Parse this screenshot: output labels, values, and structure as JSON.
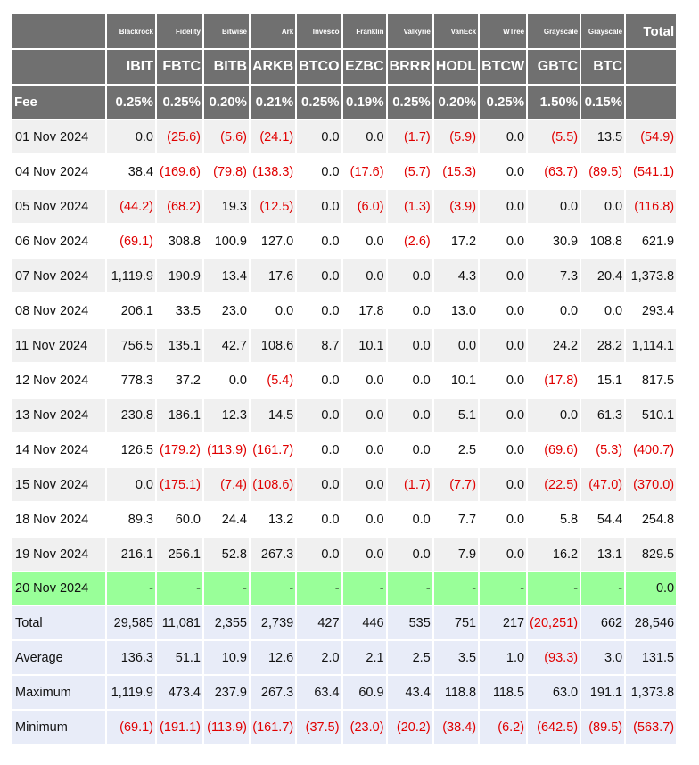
{
  "header": {
    "issuers": [
      "Blackrock",
      "Fidelity",
      "Bitwise",
      "Ark",
      "Invesco",
      "Franklin",
      "Valkyrie",
      "VanEck",
      "WTree",
      "Grayscale",
      "Grayscale"
    ],
    "total_label": "Total",
    "tickers": [
      "IBIT",
      "FBTC",
      "BITB",
      "ARKB",
      "BTCO",
      "EZBC",
      "BRRR",
      "HODL",
      "BTCW",
      "GBTC",
      "BTC"
    ],
    "fee_label": "Fee",
    "fees": [
      "0.25%",
      "0.25%",
      "0.20%",
      "0.21%",
      "0.25%",
      "0.19%",
      "0.25%",
      "0.20%",
      "0.25%",
      "1.50%",
      "0.15%"
    ]
  },
  "rows": [
    {
      "date": "01 Nov 2024",
      "values": [
        "0.0",
        "(25.6)",
        "(5.6)",
        "(24.1)",
        "0.0",
        "0.0",
        "(1.7)",
        "(5.9)",
        "0.0",
        "(5.5)",
        "13.5",
        "(54.9)"
      ]
    },
    {
      "date": "04 Nov 2024",
      "values": [
        "38.4",
        "(169.6)",
        "(79.8)",
        "(138.3)",
        "0.0",
        "(17.6)",
        "(5.7)",
        "(15.3)",
        "0.0",
        "(63.7)",
        "(89.5)",
        "(541.1)"
      ]
    },
    {
      "date": "05 Nov 2024",
      "values": [
        "(44.2)",
        "(68.2)",
        "19.3",
        "(12.5)",
        "0.0",
        "(6.0)",
        "(1.3)",
        "(3.9)",
        "0.0",
        "0.0",
        "0.0",
        "(116.8)"
      ]
    },
    {
      "date": "06 Nov 2024",
      "values": [
        "(69.1)",
        "308.8",
        "100.9",
        "127.0",
        "0.0",
        "0.0",
        "(2.6)",
        "17.2",
        "0.0",
        "30.9",
        "108.8",
        "621.9"
      ]
    },
    {
      "date": "07 Nov 2024",
      "values": [
        "1,119.9",
        "190.9",
        "13.4",
        "17.6",
        "0.0",
        "0.0",
        "0.0",
        "4.3",
        "0.0",
        "7.3",
        "20.4",
        "1,373.8"
      ]
    },
    {
      "date": "08 Nov 2024",
      "values": [
        "206.1",
        "33.5",
        "23.0",
        "0.0",
        "0.0",
        "17.8",
        "0.0",
        "13.0",
        "0.0",
        "0.0",
        "0.0",
        "293.4"
      ]
    },
    {
      "date": "11 Nov 2024",
      "values": [
        "756.5",
        "135.1",
        "42.7",
        "108.6",
        "8.7",
        "10.1",
        "0.0",
        "0.0",
        "0.0",
        "24.2",
        "28.2",
        "1,114.1"
      ]
    },
    {
      "date": "12 Nov 2024",
      "values": [
        "778.3",
        "37.2",
        "0.0",
        "(5.4)",
        "0.0",
        "0.0",
        "0.0",
        "10.1",
        "0.0",
        "(17.8)",
        "15.1",
        "817.5"
      ]
    },
    {
      "date": "13 Nov 2024",
      "values": [
        "230.8",
        "186.1",
        "12.3",
        "14.5",
        "0.0",
        "0.0",
        "0.0",
        "5.1",
        "0.0",
        "0.0",
        "61.3",
        "510.1"
      ]
    },
    {
      "date": "14 Nov 2024",
      "values": [
        "126.5",
        "(179.2)",
        "(113.9)",
        "(161.7)",
        "0.0",
        "0.0",
        "0.0",
        "2.5",
        "0.0",
        "(69.6)",
        "(5.3)",
        "(400.7)"
      ]
    },
    {
      "date": "15 Nov 2024",
      "values": [
        "0.0",
        "(175.1)",
        "(7.4)",
        "(108.6)",
        "0.0",
        "0.0",
        "(1.7)",
        "(7.7)",
        "0.0",
        "(22.5)",
        "(47.0)",
        "(370.0)"
      ]
    },
    {
      "date": "18 Nov 2024",
      "values": [
        "89.3",
        "60.0",
        "24.4",
        "13.2",
        "0.0",
        "0.0",
        "0.0",
        "7.7",
        "0.0",
        "5.8",
        "54.4",
        "254.8"
      ]
    },
    {
      "date": "19 Nov 2024",
      "values": [
        "216.1",
        "256.1",
        "52.8",
        "267.3",
        "0.0",
        "0.0",
        "0.0",
        "7.9",
        "0.0",
        "16.2",
        "13.1",
        "829.5"
      ]
    }
  ],
  "today": {
    "date": "20 Nov 2024",
    "values": [
      "-",
      "-",
      "-",
      "-",
      "-",
      "-",
      "-",
      "-",
      "-",
      "-",
      "-",
      "0.0"
    ]
  },
  "stats": [
    {
      "label": "Total",
      "values": [
        "29,585",
        "11,081",
        "2,355",
        "2,739",
        "427",
        "446",
        "535",
        "751",
        "217",
        "(20,251)",
        "662",
        "28,546"
      ]
    },
    {
      "label": "Average",
      "values": [
        "136.3",
        "51.1",
        "10.9",
        "12.6",
        "2.0",
        "2.1",
        "2.5",
        "3.5",
        "1.0",
        "(93.3)",
        "3.0",
        "131.5"
      ]
    },
    {
      "label": "Maximum",
      "values": [
        "1,119.9",
        "473.4",
        "237.9",
        "267.3",
        "63.4",
        "60.9",
        "43.4",
        "118.8",
        "118.5",
        "63.0",
        "191.1",
        "1,373.8"
      ]
    },
    {
      "label": "Minimum",
      "values": [
        "(69.1)",
        "(191.1)",
        "(113.9)",
        "(161.7)",
        "(37.5)",
        "(23.0)",
        "(20.2)",
        "(38.4)",
        "(6.2)",
        "(642.5)",
        "(89.5)",
        "(563.7)"
      ]
    }
  ],
  "colors": {
    "header_bg": "#707070",
    "negative": "#e00000",
    "today_bg": "#99ff99",
    "stats_bg": "#e8ecf8",
    "odd_row": "#f0f0f0"
  }
}
